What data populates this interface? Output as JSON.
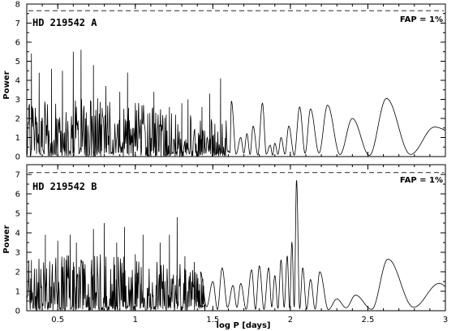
{
  "chart_data": [
    {
      "type": "line",
      "title": "HD 219542 A",
      "xlabel": "",
      "ylabel": "Power",
      "xlim": [
        0.3,
        3.0
      ],
      "ylim": [
        0,
        8
      ],
      "x_ticks": [
        0.5,
        1,
        1.5,
        2,
        2.5,
        3
      ],
      "x_tick_labels": [],
      "y_ticks": [
        0,
        1,
        2,
        3,
        4,
        5,
        6,
        7,
        8
      ],
      "y_tick_labels": [
        "0",
        "1",
        "2",
        "3",
        "4",
        "5",
        "6",
        "7",
        "8"
      ],
      "fap_threshold": 7.65,
      "fap_label": "FAP = 1%",
      "grid": false,
      "series": [
        {
          "style": "solid",
          "color": "#000000",
          "peaks": [
            [
              1.62,
              2.9
            ],
            [
              1.68,
              1.0
            ],
            [
              1.72,
              1.2
            ],
            [
              1.76,
              1.6
            ],
            [
              1.82,
              2.8
            ],
            [
              1.87,
              0.6
            ],
            [
              1.9,
              0.7
            ],
            [
              1.94,
              1.0
            ],
            [
              1.99,
              1.6
            ],
            [
              2.06,
              2.6
            ],
            [
              2.13,
              2.5
            ],
            [
              2.24,
              2.7
            ],
            [
              2.4,
              2.0
            ],
            [
              2.62,
              3.05
            ],
            [
              2.93,
              1.55
            ]
          ],
          "noise_envelope": [
            [
              0.3,
              2.2
            ],
            [
              0.6,
              2.6
            ],
            [
              1.0,
              2.3
            ],
            [
              1.3,
              1.8
            ],
            [
              1.6,
              1.5
            ]
          ],
          "notable_spikes": [
            [
              0.33,
              5.4
            ],
            [
              0.38,
              4.4
            ],
            [
              0.46,
              4.6
            ],
            [
              0.53,
              4.5
            ],
            [
              0.6,
              5.5
            ],
            [
              0.65,
              5.6
            ],
            [
              0.73,
              4.8
            ],
            [
              0.81,
              3.7
            ],
            [
              0.9,
              3.4
            ],
            [
              0.95,
              4.4
            ],
            [
              1.12,
              3.4
            ],
            [
              1.22,
              2.6
            ],
            [
              1.3,
              2.8
            ],
            [
              1.34,
              3.0
            ],
            [
              1.43,
              2.6
            ],
            [
              1.48,
              3.3
            ],
            [
              1.55,
              4.1
            ]
          ]
        }
      ]
    },
    {
      "type": "line",
      "title": "HD 219542 B",
      "xlabel": "log P [days]",
      "ylabel": "Power",
      "xlim": [
        0.3,
        3.0
      ],
      "ylim": [
        0,
        7.5
      ],
      "x_ticks": [
        0.5,
        1,
        1.5,
        2,
        2.5,
        3
      ],
      "x_tick_labels": [
        "0.5",
        "1",
        "1.5",
        "2",
        "2.5",
        "3"
      ],
      "y_ticks": [
        0,
        1,
        2,
        3,
        4,
        5,
        6,
        7
      ],
      "y_tick_labels": [
        "0",
        "1",
        "2",
        "3",
        "4",
        "5",
        "6",
        "7"
      ],
      "fap_threshold": 7.1,
      "fap_label": "FAP = 1%",
      "grid": false,
      "series": [
        {
          "style": "solid",
          "color": "#000000",
          "peaks": [
            [
              1.42,
              2.0
            ],
            [
              1.5,
              1.5
            ],
            [
              1.56,
              2.2
            ],
            [
              1.63,
              1.3
            ],
            [
              1.68,
              1.4
            ],
            [
              1.75,
              2.1
            ],
            [
              1.8,
              2.3
            ],
            [
              1.86,
              2.2
            ],
            [
              1.9,
              1.8
            ],
            [
              1.94,
              2.6
            ],
            [
              1.98,
              2.8
            ],
            [
              2.01,
              3.5
            ],
            [
              2.04,
              6.7
            ],
            [
              2.08,
              2.2
            ],
            [
              2.13,
              1.6
            ],
            [
              2.19,
              2.0
            ],
            [
              2.3,
              0.6
            ],
            [
              2.42,
              0.8
            ],
            [
              2.63,
              2.65
            ],
            [
              2.96,
              1.4
            ]
          ],
          "noise_envelope": [
            [
              0.3,
              2.1
            ],
            [
              0.6,
              2.5
            ],
            [
              1.0,
              2.2
            ],
            [
              1.3,
              2.0
            ],
            [
              1.45,
              1.5
            ]
          ],
          "notable_spikes": [
            [
              0.33,
              2.6
            ],
            [
              0.42,
              3.9
            ],
            [
              0.5,
              3.6
            ],
            [
              0.58,
              3.9
            ],
            [
              0.62,
              3.5
            ],
            [
              0.73,
              4.2
            ],
            [
              0.8,
              4.5
            ],
            [
              0.88,
              3.5
            ],
            [
              0.93,
              4.3
            ],
            [
              1.0,
              2.9
            ],
            [
              1.05,
              3.9
            ],
            [
              1.16,
              3.5
            ],
            [
              1.22,
              3.9
            ],
            [
              1.27,
              4.8
            ],
            [
              1.32,
              2.8
            ],
            [
              1.38,
              2.5
            ]
          ]
        }
      ]
    }
  ]
}
